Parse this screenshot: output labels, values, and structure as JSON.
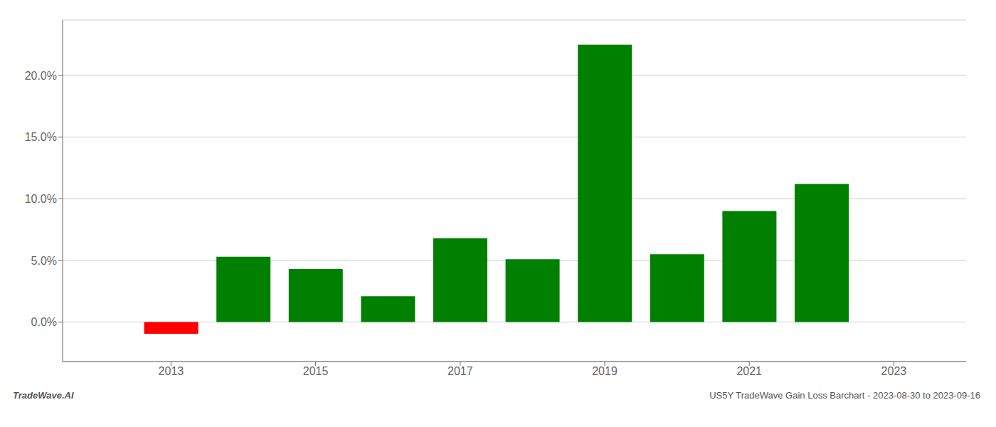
{
  "chart_data": {
    "type": "bar",
    "x": [
      2013,
      2014,
      2015,
      2016,
      2017,
      2018,
      2019,
      2020,
      2021,
      2022
    ],
    "values": [
      -0.0095,
      0.053,
      0.043,
      0.021,
      0.068,
      0.051,
      0.225,
      0.055,
      0.09,
      0.112
    ],
    "colors": [
      "#ff0000",
      "#008000",
      "#008000",
      "#008000",
      "#008000",
      "#008000",
      "#008000",
      "#008000",
      "#008000",
      "#008000"
    ],
    "xlim": [
      2011.5,
      2024.0
    ],
    "xticks": [
      2013,
      2015,
      2017,
      2019,
      2021,
      2023
    ],
    "ylim": [
      -0.032,
      0.245
    ],
    "yticks": [
      {
        "value": 0.0,
        "label": "0.0%"
      },
      {
        "value": 0.05,
        "label": "5.0%"
      },
      {
        "value": 0.1,
        "label": "10.0%"
      },
      {
        "value": 0.15,
        "label": "15.0%"
      },
      {
        "value": 0.2,
        "label": "20.0%"
      }
    ],
    "grid": true,
    "annotations": [
      "TradeWave.AI",
      "US5Y TradeWave Gain Loss Barchart - 2023-08-30 to 2023-09-16"
    ]
  }
}
